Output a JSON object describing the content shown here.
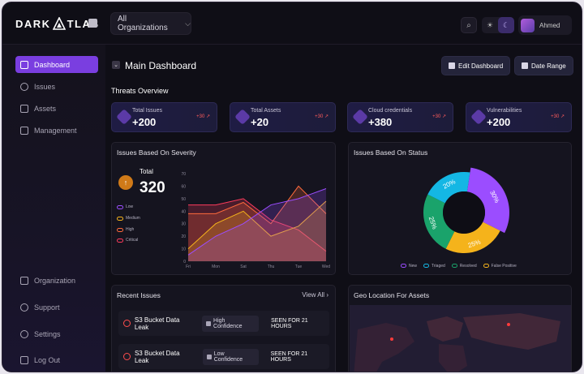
{
  "app": {
    "logo_text": "DARKATLAS",
    "logo_left": "DARK",
    "logo_right": "TLAS"
  },
  "topbar": {
    "org_select": "All Organizations",
    "user_name": "Ahmed"
  },
  "sidebar": {
    "top_items": [
      {
        "label": "Dashboard",
        "icon": "home-icon",
        "active": true
      },
      {
        "label": "Issues",
        "icon": "alert-circle-icon"
      },
      {
        "label": "Assets",
        "icon": "layers-icon"
      },
      {
        "label": "Management",
        "icon": "sliders-icon"
      }
    ],
    "bottom_items": [
      {
        "label": "Organization",
        "icon": "building-icon"
      },
      {
        "label": "Support",
        "icon": "chat-icon"
      },
      {
        "label": "Settings",
        "icon": "gear-icon"
      },
      {
        "label": "Log Out",
        "icon": "logout-icon"
      }
    ]
  },
  "header": {
    "title": "Main Dashboard",
    "edit_label": "Edit Dashboard",
    "date_label": "Date Range"
  },
  "threats": {
    "title": "Threats Overview",
    "cards": [
      {
        "label": "Total Issues",
        "value": "+200",
        "delta": "+30",
        "icon": "shield-icon",
        "color": "#6b3fbf"
      },
      {
        "label": "Total Assets",
        "value": "+20",
        "delta": "+30",
        "icon": "stack-icon",
        "color": "#8a44d8"
      },
      {
        "label": "Cloud credentials",
        "value": "+380",
        "delta": "+30",
        "icon": "tree-icon",
        "color": "#7a3bc4"
      },
      {
        "label": "Vulnerabilities",
        "value": "+200",
        "delta": "+30",
        "icon": "shield-icon",
        "color": "#6b3fbf"
      }
    ]
  },
  "severity": {
    "title": "Issues Based On Severity",
    "total_label": "Total",
    "total_value": "320",
    "legend": [
      {
        "label": "Low",
        "color": "#9b4dff"
      },
      {
        "label": "Medium",
        "color": "#f5b31b"
      },
      {
        "label": "High",
        "color": "#ff6a3c"
      },
      {
        "label": "Critical",
        "color": "#ff3b5c"
      }
    ]
  },
  "status": {
    "title": "Issues Based On Status",
    "legend": [
      {
        "label": "New",
        "color": "#9b4dff"
      },
      {
        "label": "Triaged",
        "color": "#14b7e4"
      },
      {
        "label": "Resolved",
        "color": "#1aa36b"
      },
      {
        "label": "False Positive",
        "color": "#f5b31b"
      }
    ]
  },
  "recent": {
    "title": "Recent Issues",
    "view_all": "View All",
    "rows": [
      {
        "title": "S3 Bucket Data Leak",
        "confidence": "High Confidence",
        "seen": "SEEN FOR 21 HOURS"
      },
      {
        "title": "S3 Bucket Data Leak",
        "confidence": "Low Confidence",
        "seen": "SEEN FOR 21 HOURS"
      }
    ]
  },
  "geo": {
    "title": "Geo Location For Assets"
  },
  "chart_data": [
    {
      "type": "area",
      "title": "Issues Based On Severity",
      "categories": [
        "Fri",
        "Mon",
        "Sat",
        "Thu",
        "Tue",
        "Wed"
      ],
      "ylim": [
        0,
        70
      ],
      "yticks": [
        0,
        10,
        20,
        30,
        40,
        50,
        60,
        70
      ],
      "series": [
        {
          "name": "Low",
          "color": "#9b4dff",
          "values": [
            5,
            20,
            30,
            45,
            50,
            58
          ]
        },
        {
          "name": "Medium",
          "color": "#f5b31b",
          "values": [
            10,
            30,
            40,
            20,
            28,
            48
          ]
        },
        {
          "name": "High",
          "color": "#ff6a3c",
          "values": [
            38,
            38,
            47,
            30,
            60,
            38
          ]
        },
        {
          "name": "Critical",
          "color": "#ff3b5c",
          "values": [
            45,
            45,
            50,
            33,
            25,
            8
          ]
        }
      ]
    },
    {
      "type": "pie",
      "title": "Issues Based On Status",
      "series": [
        {
          "name": "New",
          "value": 30,
          "color": "#9b4dff"
        },
        {
          "name": "False Positive",
          "value": 25,
          "color": "#f5b31b"
        },
        {
          "name": "Resolved",
          "value": 25,
          "color": "#1aa36b"
        },
        {
          "name": "Triaged",
          "value": 20,
          "color": "#14b7e4"
        }
      ],
      "labels": [
        "30%",
        "25%",
        "25%",
        "20%"
      ]
    }
  ]
}
